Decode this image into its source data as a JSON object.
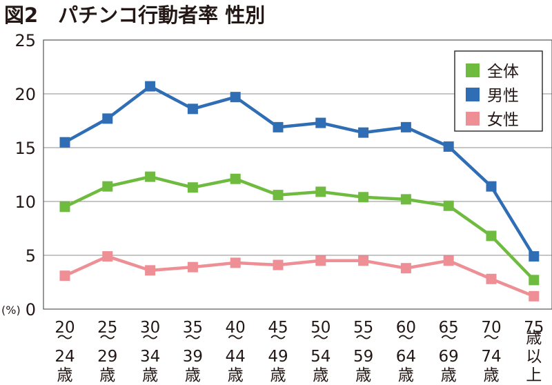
{
  "chart_data": {
    "type": "line",
    "title": "図2　パチンコ行動者率 性別",
    "ylabel": "(%)",
    "ylim": [
      0,
      25
    ],
    "yticks": [
      "0",
      "5",
      "10",
      "15",
      "20",
      "25"
    ],
    "grid": true,
    "legend": "top-right",
    "categories": [
      [
        "20",
        "〜",
        "24",
        "歳"
      ],
      [
        "25",
        "〜",
        "29",
        "歳"
      ],
      [
        "30",
        "〜",
        "34",
        "歳"
      ],
      [
        "35",
        "〜",
        "39",
        "歳"
      ],
      [
        "40",
        "〜",
        "44",
        "歳"
      ],
      [
        "45",
        "〜",
        "49",
        "歳"
      ],
      [
        "50",
        "〜",
        "54",
        "歳"
      ],
      [
        "55",
        "〜",
        "59",
        "歳"
      ],
      [
        "60",
        "〜",
        "64",
        "歳"
      ],
      [
        "65",
        "〜",
        "69",
        "歳"
      ],
      [
        "70",
        "〜",
        "74",
        "歳"
      ],
      [
        "75",
        "歳",
        "以",
        "上"
      ]
    ],
    "series": [
      {
        "name": "全体",
        "color": "#6fbb3f",
        "values": [
          9.5,
          11.4,
          12.3,
          11.3,
          12.1,
          10.6,
          10.9,
          10.4,
          10.2,
          9.6,
          6.8,
          2.7
        ]
      },
      {
        "name": "男性",
        "color": "#2f6db5",
        "values": [
          15.5,
          17.7,
          20.7,
          18.6,
          19.7,
          16.9,
          17.3,
          16.4,
          16.9,
          15.1,
          11.4,
          4.9
        ]
      },
      {
        "name": "女性",
        "color": "#ee8e95",
        "values": [
          3.1,
          4.9,
          3.6,
          3.9,
          4.3,
          4.1,
          4.5,
          4.5,
          3.8,
          4.5,
          2.8,
          1.2
        ]
      }
    ]
  }
}
